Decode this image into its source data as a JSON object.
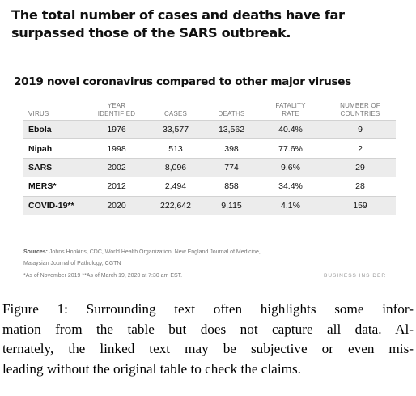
{
  "headline": {
    "line1": "The total number of cases and deaths have far",
    "line2": "surpassed those of the SARS outbreak."
  },
  "subtitle": "2019 novel coronavirus compared to other major viruses",
  "table": {
    "columns": [
      [
        "VIRUS"
      ],
      [
        "YEAR",
        "IDENTIFIED"
      ],
      [
        "CASES"
      ],
      [
        "DEATHS"
      ],
      [
        "FATALITY",
        "RATE"
      ],
      [
        "NUMBER OF",
        "COUNTRIES"
      ]
    ],
    "rows": [
      [
        "Ebola",
        "1976",
        "33,577",
        "13,562",
        "40.4%",
        "9"
      ],
      [
        "Nipah",
        "1998",
        "513",
        "398",
        "77.6%",
        "2"
      ],
      [
        "SARS",
        "2002",
        "8,096",
        "774",
        "9.6%",
        "29"
      ],
      [
        "MERS*",
        "2012",
        "2,494",
        "858",
        "34.4%",
        "28"
      ],
      [
        "COVID-19**",
        "2020",
        "222,642",
        "9,115",
        "4.1%",
        "159"
      ]
    ]
  },
  "sources": {
    "label": "Sources:",
    "line1": "Johns Hopkins, CDC, World Health Organization, New England Journal of Medicine,",
    "line2": "Malaysian Journal of Pathology, CGTN"
  },
  "notes": "*As of November 2019  **As of March 19, 2020 at 7:30 am EST.",
  "brand": "BUSINESS INSIDER",
  "caption": [
    "Figure 1: Surrounding text often highlights some infor-",
    "mation from the table but does not capture all data. Al-",
    "ternately, the linked text may be subjective or even mis-",
    "leading without the original table to check the claims."
  ]
}
